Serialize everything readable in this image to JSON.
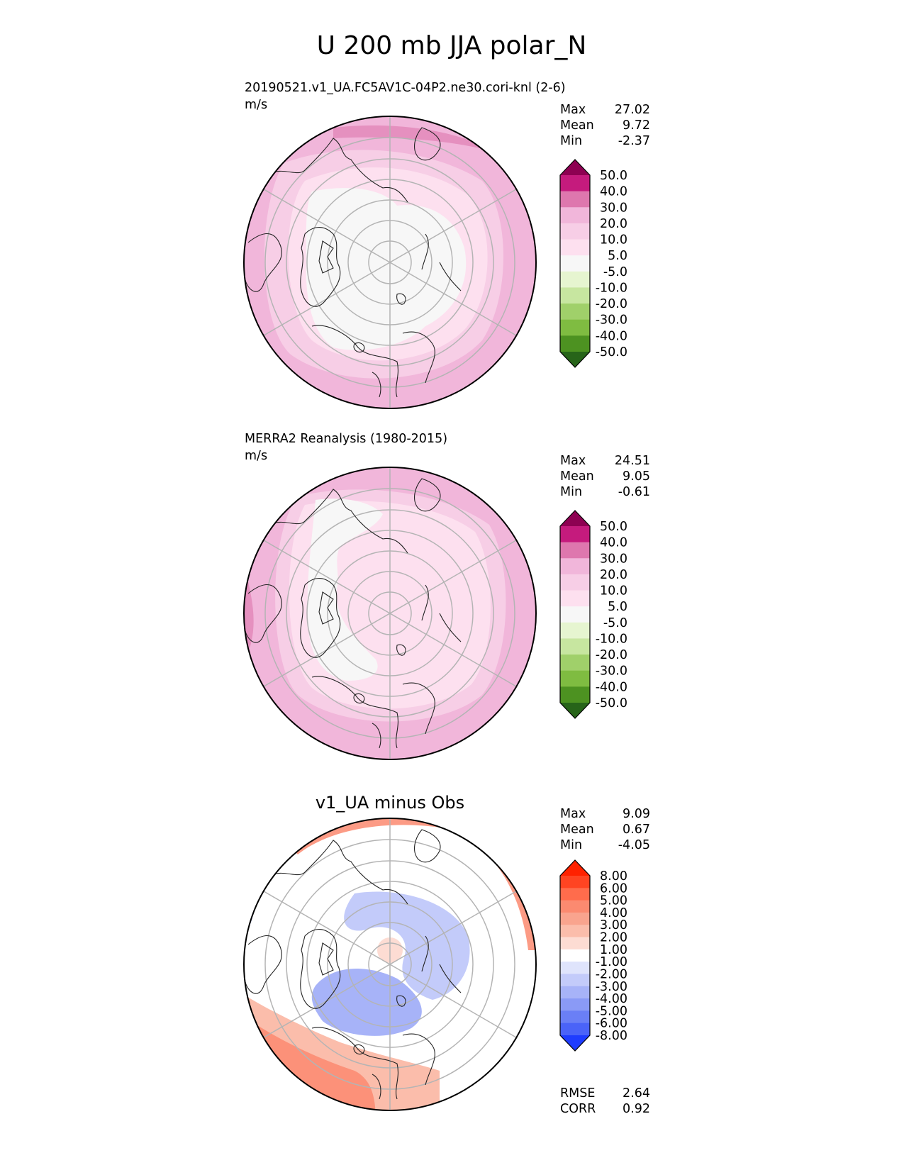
{
  "figure": {
    "title": "U 200 mb JJA polar_N"
  },
  "chart_data": [
    {
      "type": "heatmap",
      "projection": "north-polar-stereographic",
      "title": "20190521.v1_UA.FC5AV1C-04P2.ne30.cori-knl (2-6)",
      "units": "m/s",
      "stats": [
        {
          "label": "Max",
          "value": "27.02"
        },
        {
          "label": "Mean",
          "value": "9.72"
        },
        {
          "label": "Min",
          "value": "-2.37"
        }
      ],
      "colorbar": {
        "levels": [
          "50.0",
          "40.0",
          "30.0",
          "20.0",
          "10.0",
          "5.0",
          "-5.0",
          "-10.0",
          "-20.0",
          "-30.0",
          "-40.0",
          "-50.0"
        ],
        "colors": [
          "#8e0152",
          "#c51b7d",
          "#de77ae",
          "#f1b6da",
          "#f7cee6",
          "#fde0ef",
          "#f7f7f7",
          "#e6f5d0",
          "#c7e6a0",
          "#a0d06a",
          "#7fbc41",
          "#4d9221",
          "#276419"
        ],
        "extend": "both"
      },
      "field_bands": [
        {
          "range": "20.0 to 30.0",
          "color": "#f1b6da"
        },
        {
          "range": "10.0 to 20.0",
          "color": "#f7cee6"
        },
        {
          "range": "5.0 to 10.0",
          "color": "#fde0ef"
        },
        {
          "range": "-5.0 to 5.0",
          "color": "#f7f7f7"
        }
      ]
    },
    {
      "type": "heatmap",
      "projection": "north-polar-stereographic",
      "title": "MERRA2 Reanalysis (1980-2015)",
      "units": "m/s",
      "stats": [
        {
          "label": "Max",
          "value": "24.51"
        },
        {
          "label": "Mean",
          "value": "9.05"
        },
        {
          "label": "Min",
          "value": "-0.61"
        }
      ],
      "colorbar": {
        "levels": [
          "50.0",
          "40.0",
          "30.0",
          "20.0",
          "10.0",
          "5.0",
          "-5.0",
          "-10.0",
          "-20.0",
          "-30.0",
          "-40.0",
          "-50.0"
        ],
        "colors": [
          "#8e0152",
          "#c51b7d",
          "#de77ae",
          "#f1b6da",
          "#f7cee6",
          "#fde0ef",
          "#f7f7f7",
          "#e6f5d0",
          "#c7e6a0",
          "#a0d06a",
          "#7fbc41",
          "#4d9221",
          "#276419"
        ],
        "extend": "both"
      },
      "field_bands": [
        {
          "range": "20.0 to 30.0",
          "color": "#f1b6da"
        },
        {
          "range": "10.0 to 20.0",
          "color": "#f7cee6"
        },
        {
          "range": "5.0 to 10.0",
          "color": "#fde0ef"
        },
        {
          "range": "-5.0 to 5.0",
          "color": "#f7f7f7"
        }
      ]
    },
    {
      "type": "heatmap",
      "projection": "north-polar-stereographic",
      "title": "v1_UA minus Obs",
      "units": "",
      "stats": [
        {
          "label": "Max",
          "value": "9.09"
        },
        {
          "label": "Mean",
          "value": "0.67"
        },
        {
          "label": "Min",
          "value": "-4.05"
        }
      ],
      "metrics": [
        {
          "label": "RMSE",
          "value": "2.64"
        },
        {
          "label": "CORR",
          "value": "0.92"
        }
      ],
      "colorbar": {
        "levels": [
          "8.00",
          "6.00",
          "5.00",
          "4.00",
          "3.00",
          "2.00",
          "1.00",
          "-1.00",
          "-2.00",
          "-3.00",
          "-4.00",
          "-5.00",
          "-6.00",
          "-8.00"
        ],
        "colors": [
          "#ff2200",
          "#ff4422",
          "#ff6c4c",
          "#fb8a70",
          "#f9a48e",
          "#fbbdab",
          "#fddcd3",
          "#ffffff",
          "#dfe4fc",
          "#c3cbfa",
          "#a7b3f8",
          "#8a9af6",
          "#6a7ff6",
          "#4a63f8",
          "#1e3cff"
        ],
        "extend": "both"
      },
      "field_bands": [
        {
          "range": "4.00 to 5.00",
          "color": "#fb8a70"
        },
        {
          "range": "2.00 to 3.00",
          "color": "#fbbdab"
        },
        {
          "range": "-1.00 to 1.00",
          "color": "#ffffff"
        },
        {
          "range": "-3.00 to -2.00",
          "color": "#c3cbfa"
        },
        {
          "range": "-4.00 to -3.00",
          "color": "#a7b3f8"
        }
      ]
    }
  ]
}
